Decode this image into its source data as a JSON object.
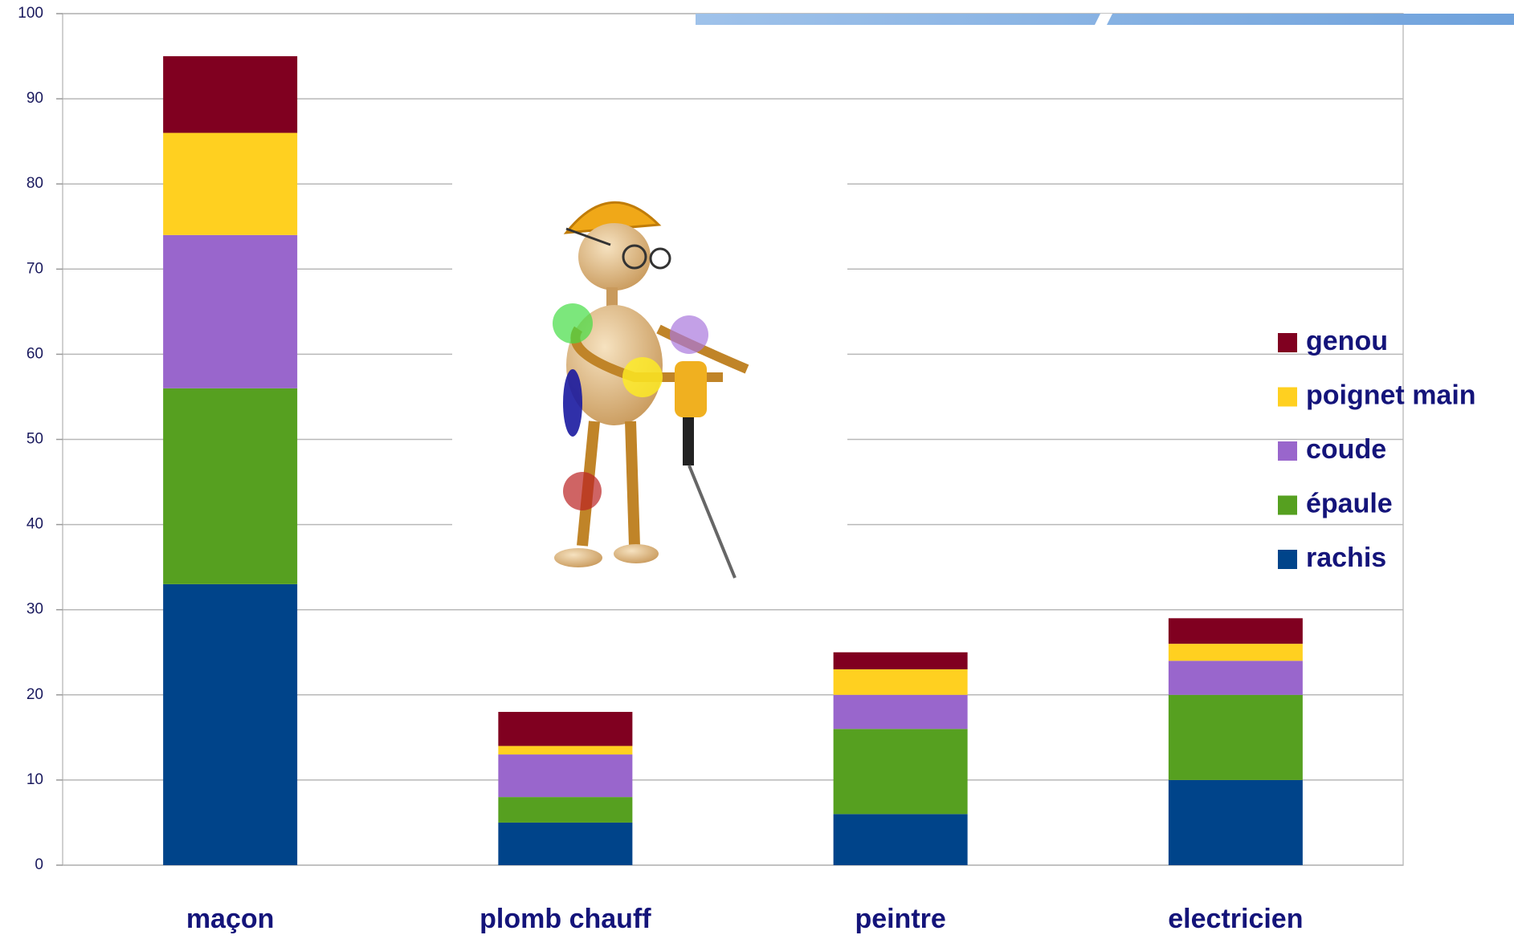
{
  "chart_data": {
    "type": "stacked-bar",
    "categories": [
      "maçon",
      "plomb chauff",
      "peintre",
      "electricien"
    ],
    "series": [
      {
        "name": "rachis",
        "color": "#00448a",
        "values": [
          33,
          5,
          6,
          10
        ]
      },
      {
        "name": "épaule",
        "color": "#56a020",
        "values": [
          23,
          3,
          10,
          10
        ]
      },
      {
        "name": "coude",
        "color": "#9966cc",
        "values": [
          18,
          5,
          4,
          4
        ]
      },
      {
        "name": "poignet main",
        "color": "#ffd020",
        "values": [
          12,
          1,
          3,
          2
        ]
      },
      {
        "name": "genou",
        "color": "#800020",
        "values": [
          9,
          4,
          2,
          3
        ]
      }
    ],
    "ylim": [
      0,
      100
    ],
    "yticks": [
      0,
      10,
      20,
      30,
      40,
      50,
      60,
      70,
      80,
      90,
      100
    ],
    "grid": true,
    "legend": "right"
  }
}
